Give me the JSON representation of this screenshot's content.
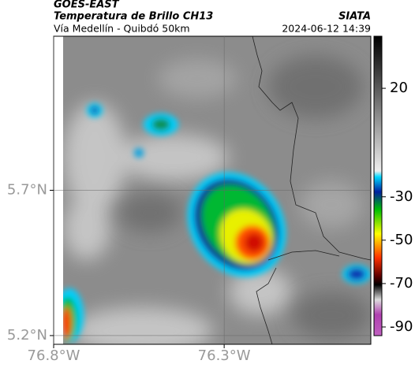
{
  "header": {
    "satellite": "GOES-EAST",
    "product": "Temperatura de Brillo CH13",
    "org": "SIATA",
    "route": "Vía Medellín - Quibdó 50km",
    "datetime": "2024-06-12 14:39"
  },
  "map": {
    "xlim": [
      -76.8,
      -75.87
    ],
    "ylim": [
      5.17,
      6.23
    ],
    "xticks": [
      {
        "value": -76.8,
        "label": "76.8°W"
      },
      {
        "value": -76.3,
        "label": "76.3°W"
      }
    ],
    "yticks": [
      {
        "value": 5.7,
        "label": "5.7°N"
      },
      {
        "value": 5.2,
        "label": "5.2°N"
      }
    ],
    "grid": true
  },
  "colorbar": {
    "lim": [
      44,
      -94
    ],
    "ticks": [
      20,
      -30,
      -50,
      -70,
      -90
    ]
  }
}
